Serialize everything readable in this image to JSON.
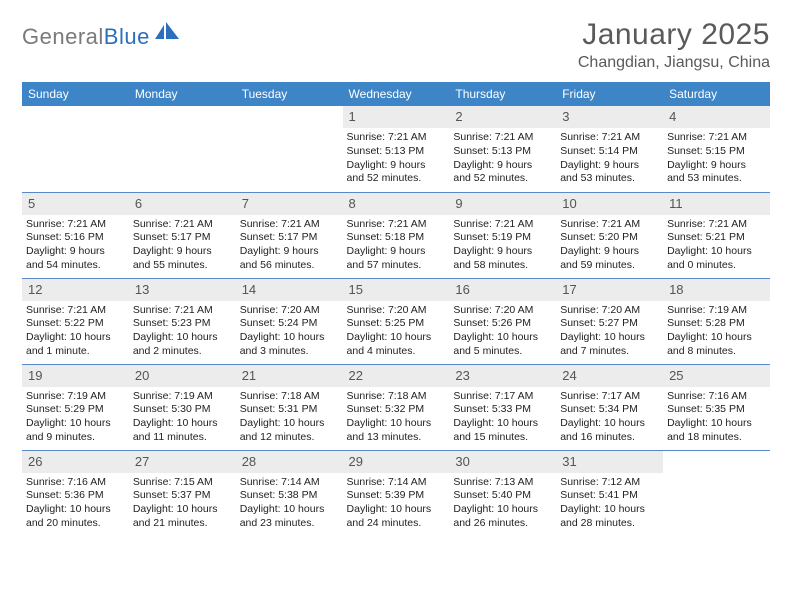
{
  "brand": {
    "part1": "General",
    "part2": "Blue"
  },
  "title": "January 2025",
  "location": "Changdian, Jiangsu, China",
  "colors": {
    "header_bg": "#3d85c6",
    "header_text": "#ffffff",
    "daynum_bg": "#ececec",
    "daynum_text": "#555555",
    "cell_border": "#5a8ac6",
    "title_color": "#5a5a5a",
    "logo_gray": "#7a7a7a",
    "logo_blue": "#2c6fbb"
  },
  "day_headers": [
    "Sunday",
    "Monday",
    "Tuesday",
    "Wednesday",
    "Thursday",
    "Friday",
    "Saturday"
  ],
  "weeks": [
    [
      {
        "n": "",
        "lines": []
      },
      {
        "n": "",
        "lines": []
      },
      {
        "n": "",
        "lines": []
      },
      {
        "n": "1",
        "lines": [
          "Sunrise: 7:21 AM",
          "Sunset: 5:13 PM",
          "Daylight: 9 hours",
          "and 52 minutes."
        ]
      },
      {
        "n": "2",
        "lines": [
          "Sunrise: 7:21 AM",
          "Sunset: 5:13 PM",
          "Daylight: 9 hours",
          "and 52 minutes."
        ]
      },
      {
        "n": "3",
        "lines": [
          "Sunrise: 7:21 AM",
          "Sunset: 5:14 PM",
          "Daylight: 9 hours",
          "and 53 minutes."
        ]
      },
      {
        "n": "4",
        "lines": [
          "Sunrise: 7:21 AM",
          "Sunset: 5:15 PM",
          "Daylight: 9 hours",
          "and 53 minutes."
        ]
      }
    ],
    [
      {
        "n": "5",
        "lines": [
          "Sunrise: 7:21 AM",
          "Sunset: 5:16 PM",
          "Daylight: 9 hours",
          "and 54 minutes."
        ]
      },
      {
        "n": "6",
        "lines": [
          "Sunrise: 7:21 AM",
          "Sunset: 5:17 PM",
          "Daylight: 9 hours",
          "and 55 minutes."
        ]
      },
      {
        "n": "7",
        "lines": [
          "Sunrise: 7:21 AM",
          "Sunset: 5:17 PM",
          "Daylight: 9 hours",
          "and 56 minutes."
        ]
      },
      {
        "n": "8",
        "lines": [
          "Sunrise: 7:21 AM",
          "Sunset: 5:18 PM",
          "Daylight: 9 hours",
          "and 57 minutes."
        ]
      },
      {
        "n": "9",
        "lines": [
          "Sunrise: 7:21 AM",
          "Sunset: 5:19 PM",
          "Daylight: 9 hours",
          "and 58 minutes."
        ]
      },
      {
        "n": "10",
        "lines": [
          "Sunrise: 7:21 AM",
          "Sunset: 5:20 PM",
          "Daylight: 9 hours",
          "and 59 minutes."
        ]
      },
      {
        "n": "11",
        "lines": [
          "Sunrise: 7:21 AM",
          "Sunset: 5:21 PM",
          "Daylight: 10 hours",
          "and 0 minutes."
        ]
      }
    ],
    [
      {
        "n": "12",
        "lines": [
          "Sunrise: 7:21 AM",
          "Sunset: 5:22 PM",
          "Daylight: 10 hours",
          "and 1 minute."
        ]
      },
      {
        "n": "13",
        "lines": [
          "Sunrise: 7:21 AM",
          "Sunset: 5:23 PM",
          "Daylight: 10 hours",
          "and 2 minutes."
        ]
      },
      {
        "n": "14",
        "lines": [
          "Sunrise: 7:20 AM",
          "Sunset: 5:24 PM",
          "Daylight: 10 hours",
          "and 3 minutes."
        ]
      },
      {
        "n": "15",
        "lines": [
          "Sunrise: 7:20 AM",
          "Sunset: 5:25 PM",
          "Daylight: 10 hours",
          "and 4 minutes."
        ]
      },
      {
        "n": "16",
        "lines": [
          "Sunrise: 7:20 AM",
          "Sunset: 5:26 PM",
          "Daylight: 10 hours",
          "and 5 minutes."
        ]
      },
      {
        "n": "17",
        "lines": [
          "Sunrise: 7:20 AM",
          "Sunset: 5:27 PM",
          "Daylight: 10 hours",
          "and 7 minutes."
        ]
      },
      {
        "n": "18",
        "lines": [
          "Sunrise: 7:19 AM",
          "Sunset: 5:28 PM",
          "Daylight: 10 hours",
          "and 8 minutes."
        ]
      }
    ],
    [
      {
        "n": "19",
        "lines": [
          "Sunrise: 7:19 AM",
          "Sunset: 5:29 PM",
          "Daylight: 10 hours",
          "and 9 minutes."
        ]
      },
      {
        "n": "20",
        "lines": [
          "Sunrise: 7:19 AM",
          "Sunset: 5:30 PM",
          "Daylight: 10 hours",
          "and 11 minutes."
        ]
      },
      {
        "n": "21",
        "lines": [
          "Sunrise: 7:18 AM",
          "Sunset: 5:31 PM",
          "Daylight: 10 hours",
          "and 12 minutes."
        ]
      },
      {
        "n": "22",
        "lines": [
          "Sunrise: 7:18 AM",
          "Sunset: 5:32 PM",
          "Daylight: 10 hours",
          "and 13 minutes."
        ]
      },
      {
        "n": "23",
        "lines": [
          "Sunrise: 7:17 AM",
          "Sunset: 5:33 PM",
          "Daylight: 10 hours",
          "and 15 minutes."
        ]
      },
      {
        "n": "24",
        "lines": [
          "Sunrise: 7:17 AM",
          "Sunset: 5:34 PM",
          "Daylight: 10 hours",
          "and 16 minutes."
        ]
      },
      {
        "n": "25",
        "lines": [
          "Sunrise: 7:16 AM",
          "Sunset: 5:35 PM",
          "Daylight: 10 hours",
          "and 18 minutes."
        ]
      }
    ],
    [
      {
        "n": "26",
        "lines": [
          "Sunrise: 7:16 AM",
          "Sunset: 5:36 PM",
          "Daylight: 10 hours",
          "and 20 minutes."
        ]
      },
      {
        "n": "27",
        "lines": [
          "Sunrise: 7:15 AM",
          "Sunset: 5:37 PM",
          "Daylight: 10 hours",
          "and 21 minutes."
        ]
      },
      {
        "n": "28",
        "lines": [
          "Sunrise: 7:14 AM",
          "Sunset: 5:38 PM",
          "Daylight: 10 hours",
          "and 23 minutes."
        ]
      },
      {
        "n": "29",
        "lines": [
          "Sunrise: 7:14 AM",
          "Sunset: 5:39 PM",
          "Daylight: 10 hours",
          "and 24 minutes."
        ]
      },
      {
        "n": "30",
        "lines": [
          "Sunrise: 7:13 AM",
          "Sunset: 5:40 PM",
          "Daylight: 10 hours",
          "and 26 minutes."
        ]
      },
      {
        "n": "31",
        "lines": [
          "Sunrise: 7:12 AM",
          "Sunset: 5:41 PM",
          "Daylight: 10 hours",
          "and 28 minutes."
        ]
      },
      {
        "n": "",
        "lines": []
      }
    ]
  ]
}
